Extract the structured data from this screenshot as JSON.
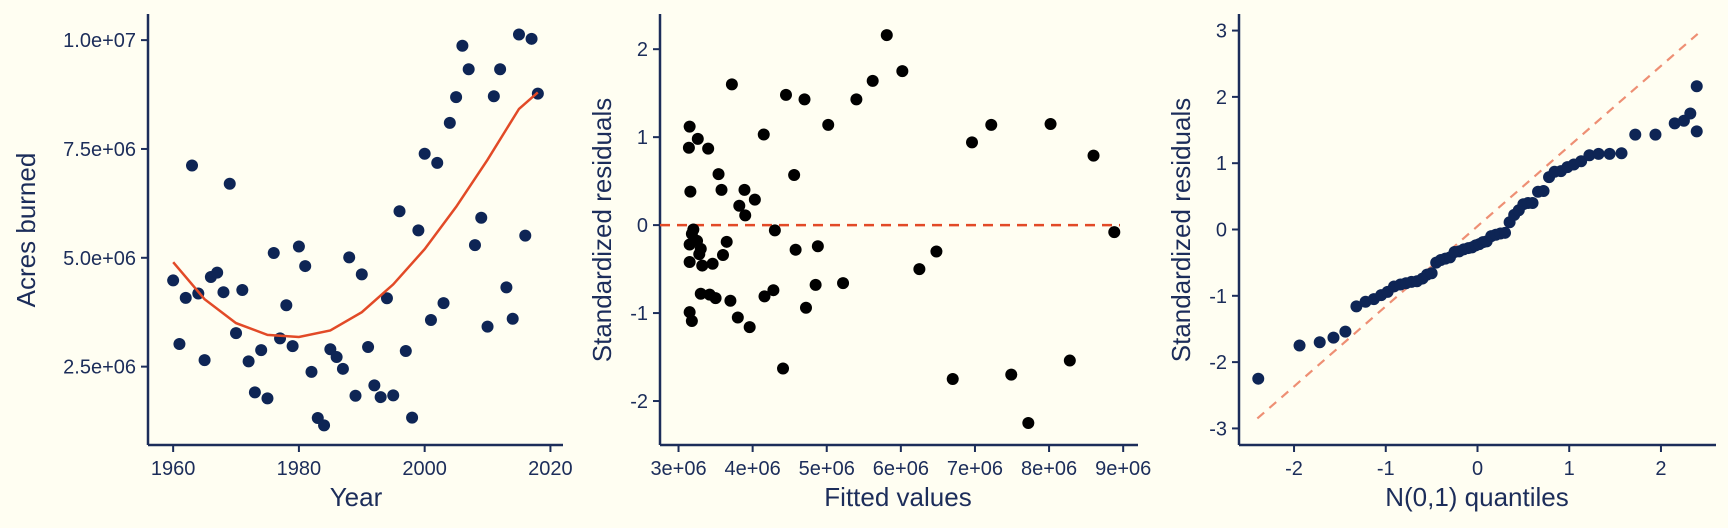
{
  "colors": {
    "background": "#fffef2",
    "axis": "#1c2d5a",
    "navy_points": "#0e2555",
    "black_points": "#000000",
    "fit_line": "#e24a27",
    "ref_line": "#ee8f74"
  },
  "chart_data": [
    {
      "type": "scatter",
      "xlabel": "Year",
      "ylabel": "Acres burned",
      "xlim": [
        1956,
        2022
      ],
      "ylim": [
        700000,
        10600000
      ],
      "xticks": [
        1960,
        1980,
        2000,
        2020
      ],
      "xtick_labels": [
        "1960",
        "1980",
        "2000",
        "2020"
      ],
      "yticks": [
        2500000,
        5000000,
        7500000,
        10000000
      ],
      "ytick_labels": [
        "2.5e+06",
        "5.0e+06",
        "7.5e+06",
        "1.0e+07"
      ],
      "grid": false,
      "points": [
        [
          1960,
          4480000
        ],
        [
          1961,
          3020000
        ],
        [
          1962,
          4080000
        ],
        [
          1963,
          7120000
        ],
        [
          1964,
          4180000
        ],
        [
          1965,
          2650000
        ],
        [
          1966,
          4560000
        ],
        [
          1967,
          4660000
        ],
        [
          1968,
          4210000
        ],
        [
          1969,
          6700000
        ],
        [
          1970,
          3270000
        ],
        [
          1971,
          4260000
        ],
        [
          1972,
          2620000
        ],
        [
          1973,
          1910000
        ],
        [
          1974,
          2880000
        ],
        [
          1975,
          1770000
        ],
        [
          1976,
          5110000
        ],
        [
          1977,
          3150000
        ],
        [
          1978,
          3910000
        ],
        [
          1979,
          2970000
        ],
        [
          1980,
          5260000
        ],
        [
          1981,
          4810000
        ],
        [
          1982,
          2380000
        ],
        [
          1983,
          1320000
        ],
        [
          1984,
          1150000
        ],
        [
          1985,
          2900000
        ],
        [
          1986,
          2720000
        ],
        [
          1987,
          2450000
        ],
        [
          1988,
          5010000
        ],
        [
          1989,
          1830000
        ],
        [
          1990,
          4620000
        ],
        [
          1991,
          2950000
        ],
        [
          1992,
          2070000
        ],
        [
          1993,
          1800000
        ],
        [
          1994,
          4070000
        ],
        [
          1995,
          1840000
        ],
        [
          1996,
          6070000
        ],
        [
          1997,
          2860000
        ],
        [
          1998,
          1330000
        ],
        [
          1999,
          5630000
        ],
        [
          2000,
          7390000
        ],
        [
          2001,
          3570000
        ],
        [
          2002,
          7180000
        ],
        [
          2003,
          3960000
        ],
        [
          2004,
          8100000
        ],
        [
          2005,
          8690000
        ],
        [
          2006,
          9870000
        ],
        [
          2007,
          9330000
        ],
        [
          2008,
          5290000
        ],
        [
          2009,
          5920000
        ],
        [
          2010,
          3420000
        ],
        [
          2011,
          8710000
        ],
        [
          2012,
          9330000
        ],
        [
          2013,
          4320000
        ],
        [
          2014,
          3600000
        ],
        [
          2015,
          10130000
        ],
        [
          2016,
          5510000
        ],
        [
          2017,
          10030000
        ],
        [
          2018,
          8770000
        ]
      ],
      "fit_line": {
        "x": [
          1960,
          1965,
          1970,
          1975,
          1980,
          1985,
          1990,
          1995,
          2000,
          2005,
          2010,
          2015,
          2018
        ],
        "y": [
          4900000,
          4050000,
          3500000,
          3230000,
          3180000,
          3330000,
          3750000,
          4390000,
          5200000,
          6170000,
          7250000,
          8420000,
          8800000
        ]
      }
    },
    {
      "type": "scatter",
      "xlabel": "Fitted values",
      "ylabel": "Standardized residuals",
      "xlim": [
        2750000,
        9200000
      ],
      "ylim": [
        -2.5,
        2.4
      ],
      "xticks": [
        3000000,
        4000000,
        5000000,
        6000000,
        7000000,
        8000000,
        9000000
      ],
      "xtick_labels": [
        "3e+06",
        "4e+06",
        "5e+06",
        "6e+06",
        "7e+06",
        "8e+06",
        "9e+06"
      ],
      "yticks": [
        -2,
        -1,
        0,
        1,
        2
      ],
      "ytick_labels": [
        "-2",
        "-1",
        "0",
        "1",
        "2"
      ],
      "grid": false,
      "reference_line_y": 0,
      "points": [
        [
          3150000,
          1.12
        ],
        [
          3140000,
          0.88
        ],
        [
          3260000,
          0.98
        ],
        [
          3160000,
          0.38
        ],
        [
          3180000,
          -0.1
        ],
        [
          3200000,
          -0.05
        ],
        [
          3150000,
          -0.22
        ],
        [
          3250000,
          -0.18
        ],
        [
          3300000,
          -0.27
        ],
        [
          3280000,
          -0.33
        ],
        [
          3150000,
          -0.42
        ],
        [
          3320000,
          -0.46
        ],
        [
          3460000,
          -0.44
        ],
        [
          3500000,
          -0.83
        ],
        [
          3150000,
          -0.99
        ],
        [
          3180000,
          -1.09
        ],
        [
          3300000,
          -0.78
        ],
        [
          3420000,
          -0.79
        ],
        [
          3400000,
          0.87
        ],
        [
          3540000,
          0.58
        ],
        [
          3580000,
          0.4
        ],
        [
          3600000,
          -0.34
        ],
        [
          3650000,
          -0.19
        ],
        [
          3720000,
          1.6
        ],
        [
          3700000,
          -0.86
        ],
        [
          3800000,
          -1.05
        ],
        [
          3820000,
          0.22
        ],
        [
          3890000,
          0.4
        ],
        [
          3900000,
          0.11
        ],
        [
          3960000,
          -1.16
        ],
        [
          4030000,
          0.29
        ],
        [
          4150000,
          1.03
        ],
        [
          4160000,
          -0.81
        ],
        [
          4280000,
          -0.74
        ],
        [
          4300000,
          -0.06
        ],
        [
          4410000,
          -1.63
        ],
        [
          4450000,
          1.48
        ],
        [
          4560000,
          0.57
        ],
        [
          4580000,
          -0.28
        ],
        [
          4700000,
          1.43
        ],
        [
          4720000,
          -0.94
        ],
        [
          4850000,
          -0.68
        ],
        [
          4880000,
          -0.24
        ],
        [
          5020000,
          1.14
        ],
        [
          5220000,
          -0.66
        ],
        [
          5400000,
          1.43
        ],
        [
          5620000,
          1.64
        ],
        [
          5810000,
          2.16
        ],
        [
          6020000,
          1.75
        ],
        [
          6250000,
          -0.5
        ],
        [
          6480000,
          -0.3
        ],
        [
          6700000,
          -1.75
        ],
        [
          6960000,
          0.94
        ],
        [
          7220000,
          1.14
        ],
        [
          7490000,
          -1.7
        ],
        [
          7720000,
          -2.25
        ],
        [
          8020000,
          1.15
        ],
        [
          8280000,
          -1.54
        ],
        [
          8600000,
          0.79
        ],
        [
          8880000,
          -0.08
        ]
      ]
    },
    {
      "type": "scatter",
      "xlabel": "N(0,1) quantiles",
      "ylabel": "Standardized residuals",
      "xlim": [
        -2.6,
        2.6
      ],
      "ylim": [
        -3.25,
        3.25
      ],
      "xticks": [
        -2,
        -1,
        0,
        1,
        2
      ],
      "xtick_labels": [
        "-2",
        "-1",
        "0",
        "1",
        "2"
      ],
      "yticks": [
        -3,
        -2,
        -1,
        0,
        1,
        2,
        3
      ],
      "ytick_labels": [
        "-3",
        "-2",
        "-1",
        "0",
        "1",
        "2",
        "3"
      ],
      "grid": false,
      "reference_line": {
        "x": [
          -2.4,
          2.4
        ],
        "y": [
          -2.85,
          2.95
        ]
      },
      "points": [
        [
          -2.39,
          -2.25
        ],
        [
          -1.94,
          -1.75
        ],
        [
          -1.72,
          -1.7
        ],
        [
          -1.57,
          -1.63
        ],
        [
          -1.44,
          -1.54
        ],
        [
          -1.32,
          -1.16
        ],
        [
          -1.22,
          -1.09
        ],
        [
          -1.13,
          -1.05
        ],
        [
          -1.05,
          -0.99
        ],
        [
          -0.98,
          -0.94
        ],
        [
          -0.91,
          -0.86
        ],
        [
          -0.84,
          -0.83
        ],
        [
          -0.78,
          -0.81
        ],
        [
          -0.72,
          -0.79
        ],
        [
          -0.66,
          -0.78
        ],
        [
          -0.6,
          -0.74
        ],
        [
          -0.55,
          -0.68
        ],
        [
          -0.5,
          -0.66
        ],
        [
          -0.45,
          -0.5
        ],
        [
          -0.4,
          -0.46
        ],
        [
          -0.35,
          -0.44
        ],
        [
          -0.3,
          -0.42
        ],
        [
          -0.25,
          -0.34
        ],
        [
          -0.2,
          -0.33
        ],
        [
          -0.15,
          -0.3
        ],
        [
          -0.1,
          -0.28
        ],
        [
          -0.06,
          -0.27
        ],
        [
          -0.02,
          -0.24
        ],
        [
          0.02,
          -0.22
        ],
        [
          0.06,
          -0.19
        ],
        [
          0.1,
          -0.18
        ],
        [
          0.15,
          -0.1
        ],
        [
          0.2,
          -0.08
        ],
        [
          0.25,
          -0.06
        ],
        [
          0.3,
          -0.05
        ],
        [
          0.35,
          0.11
        ],
        [
          0.4,
          0.22
        ],
        [
          0.45,
          0.29
        ],
        [
          0.5,
          0.38
        ],
        [
          0.55,
          0.4
        ],
        [
          0.6,
          0.4
        ],
        [
          0.66,
          0.57
        ],
        [
          0.72,
          0.58
        ],
        [
          0.78,
          0.79
        ],
        [
          0.84,
          0.87
        ],
        [
          0.91,
          0.88
        ],
        [
          0.98,
          0.94
        ],
        [
          1.05,
          0.98
        ],
        [
          1.13,
          1.03
        ],
        [
          1.22,
          1.12
        ],
        [
          1.32,
          1.14
        ],
        [
          1.44,
          1.14
        ],
        [
          1.57,
          1.15
        ],
        [
          1.72,
          1.43
        ],
        [
          1.94,
          1.43
        ],
        [
          2.39,
          1.48
        ],
        [
          2.15,
          1.6
        ],
        [
          2.25,
          1.64
        ],
        [
          2.32,
          1.75
        ],
        [
          2.39,
          2.16
        ]
      ]
    }
  ]
}
